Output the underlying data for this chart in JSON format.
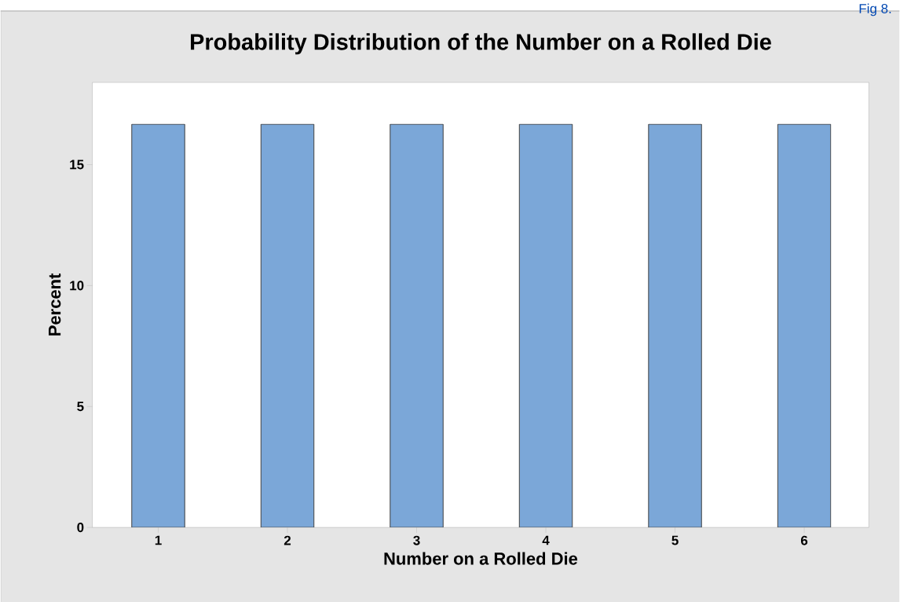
{
  "chart_data": {
    "type": "bar",
    "title": "Probability Distribution of the Number on a Rolled Die",
    "xlabel": "Number on a Rolled Die",
    "ylabel": "Percent",
    "categories": [
      "1",
      "2",
      "3",
      "4",
      "5",
      "6"
    ],
    "values": [
      16.67,
      16.67,
      16.67,
      16.67,
      16.67,
      16.67
    ],
    "color": "#7ba7d8",
    "ylim": [
      0,
      18.4
    ],
    "yticks": [
      0,
      5,
      10,
      15
    ],
    "annotations": [
      "Fig 8."
    ]
  }
}
